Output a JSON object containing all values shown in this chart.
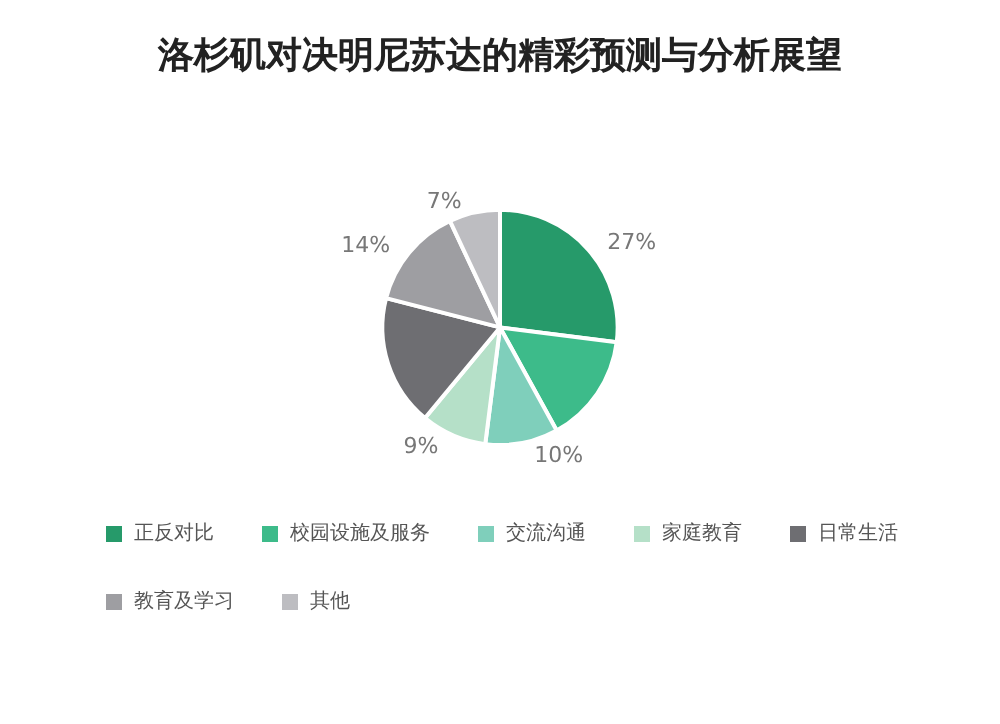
{
  "chart_data": {
    "type": "pie",
    "title": "洛杉矶对决明尼苏达的精彩预测与分析展望",
    "categories": [
      "正反对比",
      "校园设施及服务",
      "交流沟通",
      "家庭教育",
      "日常生活",
      "教育及学习",
      "其他"
    ],
    "values": [
      27,
      15,
      10,
      9,
      18,
      14,
      7
    ],
    "value_labels": [
      "27%",
      null,
      "10%",
      "9%",
      null,
      "14%",
      "7%"
    ],
    "colors": [
      "#269a6a",
      "#3dbb8a",
      "#7fcfbb",
      "#b5e0c8",
      "#6e6e72",
      "#9e9ea2",
      "#bdbdc1"
    ],
    "legend": "bottom"
  }
}
